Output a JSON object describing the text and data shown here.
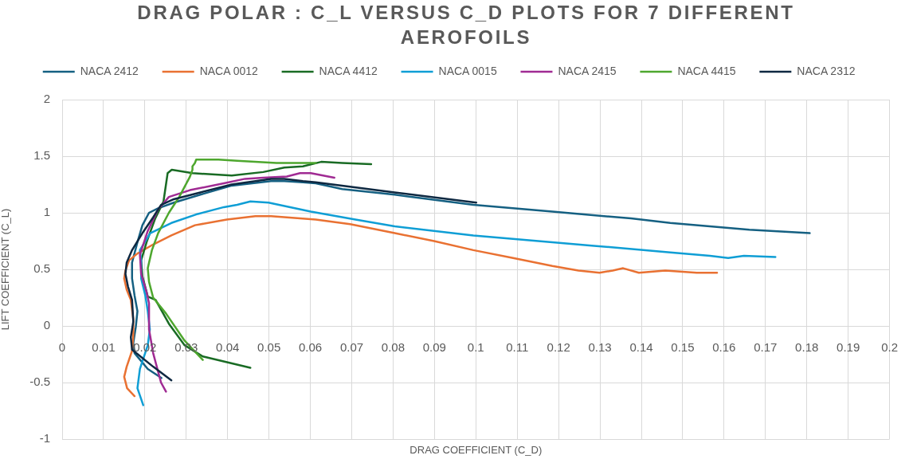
{
  "chart_data": {
    "type": "line",
    "title": "DRAG POLAR : C_L VERSUS C_D PLOTS FOR 7 DIFFERENT AEROFOILS",
    "xlabel": "DRAG COEFFICIENT (C_D)",
    "ylabel": "LIFT COEFFICIENT (C_L)",
    "xlim": [
      0,
      0.2
    ],
    "xticks": [
      0,
      0.01,
      0.02,
      0.03,
      0.04,
      0.05,
      0.06,
      0.07,
      0.08,
      0.09,
      0.1,
      0.11,
      0.12,
      0.13,
      0.14,
      0.15,
      0.16,
      0.17,
      0.18,
      0.19,
      0.2
    ],
    "ylim": [
      -1,
      2
    ],
    "yticks": [
      -1,
      -0.5,
      0,
      0.5,
      1,
      1.5,
      2
    ],
    "grid": true,
    "legend": "top",
    "marker": "none",
    "series": [
      {
        "name": "NACA 2412",
        "color": "#156082",
        "x": [
          0.024,
          0.0207,
          0.0175,
          0.0172,
          0.0178,
          0.0182,
          0.0175,
          0.0169,
          0.0169,
          0.0182,
          0.0194,
          0.021,
          0.0232,
          0.027,
          0.0334,
          0.041,
          0.0505,
          0.0537,
          0.0582,
          0.0613,
          0.0677,
          0.0804,
          0.0994,
          0.1185,
          0.1375,
          0.147,
          0.1661,
          0.1807
        ],
        "values": [
          -0.46,
          -0.38,
          -0.24,
          -0.15,
          -0.01,
          0.13,
          0.27,
          0.42,
          0.56,
          0.74,
          0.89,
          1.0,
          1.04,
          1.09,
          1.16,
          1.24,
          1.28,
          1.28,
          1.27,
          1.26,
          1.21,
          1.16,
          1.07,
          1.01,
          0.95,
          0.91,
          0.85,
          0.82
        ]
      },
      {
        "name": "NACA 0012",
        "color": "#e97132",
        "x": [
          0.0175,
          0.0157,
          0.015,
          0.0156,
          0.0169,
          0.0172,
          0.0172,
          0.0166,
          0.0156,
          0.015,
          0.0153,
          0.0162,
          0.0182,
          0.022,
          0.0264,
          0.0321,
          0.0398,
          0.0467,
          0.0505,
          0.0613,
          0.0696,
          0.0804,
          0.0899,
          0.0994,
          0.109,
          0.1185,
          0.1248,
          0.1299,
          0.1331,
          0.1356,
          0.1394,
          0.1458,
          0.1534,
          0.1583
        ],
        "values": [
          -0.62,
          -0.55,
          -0.45,
          -0.36,
          -0.22,
          -0.08,
          0.06,
          0.23,
          0.32,
          0.42,
          0.49,
          0.58,
          0.64,
          0.72,
          0.8,
          0.89,
          0.94,
          0.97,
          0.97,
          0.94,
          0.9,
          0.82,
          0.75,
          0.67,
          0.6,
          0.53,
          0.49,
          0.47,
          0.49,
          0.51,
          0.47,
          0.49,
          0.47,
          0.47
        ]
      },
      {
        "name": "NACA 4412",
        "color": "#196b24",
        "x": [
          0.0455,
          0.034,
          0.0296,
          0.0258,
          0.0226,
          0.0207,
          0.0194,
          0.0191,
          0.0205,
          0.0225,
          0.0245,
          0.0251,
          0.0255,
          0.0265,
          0.0315,
          0.041,
          0.0486,
          0.0537,
          0.0582,
          0.0626,
          0.0677,
          0.0747
        ],
        "values": [
          -0.37,
          -0.27,
          -0.17,
          0.02,
          0.23,
          0.26,
          0.44,
          0.58,
          0.75,
          0.95,
          1.1,
          1.25,
          1.35,
          1.38,
          1.35,
          1.33,
          1.36,
          1.4,
          1.41,
          1.45,
          1.44,
          1.43
        ]
      },
      {
        "name": "NACA 0015",
        "color": "#0f9ed5",
        "x": [
          0.0196,
          0.0182,
          0.0188,
          0.0207,
          0.0212,
          0.0207,
          0.0201,
          0.0191,
          0.0191,
          0.0188,
          0.0213,
          0.0264,
          0.0328,
          0.0391,
          0.0423,
          0.0455,
          0.0499,
          0.0601,
          0.0709,
          0.0804,
          0.0994,
          0.1185,
          0.128,
          0.147,
          0.1566,
          0.161,
          0.1648,
          0.1724
        ],
        "values": [
          -0.7,
          -0.55,
          -0.38,
          -0.17,
          -0.03,
          0.13,
          0.27,
          0.42,
          0.58,
          0.67,
          0.82,
          0.91,
          0.99,
          1.05,
          1.07,
          1.1,
          1.09,
          1.01,
          0.94,
          0.88,
          0.8,
          0.74,
          0.71,
          0.65,
          0.62,
          0.6,
          0.62,
          0.61
        ]
      },
      {
        "name": "NACA 2415",
        "color": "#a02b93",
        "x": [
          0.0251,
          0.0239,
          0.022,
          0.021,
          0.021,
          0.0204,
          0.0191,
          0.0188,
          0.0207,
          0.0232,
          0.0258,
          0.0309,
          0.0391,
          0.0442,
          0.0486,
          0.0543,
          0.0575,
          0.0601,
          0.0658
        ],
        "values": [
          -0.58,
          -0.5,
          -0.24,
          -0.03,
          0.2,
          0.3,
          0.46,
          0.63,
          0.84,
          1.03,
          1.14,
          1.2,
          1.26,
          1.3,
          1.31,
          1.32,
          1.35,
          1.35,
          1.31
        ]
      },
      {
        "name": "NACA 4415",
        "color": "#4ea72e",
        "x": [
          0.034,
          0.0296,
          0.0251,
          0.022,
          0.021,
          0.0207,
          0.0217,
          0.0232,
          0.0258,
          0.0283,
          0.0309,
          0.0315,
          0.0315,
          0.0321,
          0.0324,
          0.0378,
          0.0423,
          0.0518,
          0.0613
        ],
        "values": [
          -0.3,
          -0.13,
          0.11,
          0.25,
          0.39,
          0.51,
          0.67,
          0.82,
          1.0,
          1.14,
          1.32,
          1.38,
          1.41,
          1.44,
          1.47,
          1.47,
          1.46,
          1.44,
          1.44
        ]
      },
      {
        "name": "NACA 2312",
        "color": "#0e2841",
        "x": [
          0.0264,
          0.022,
          0.0169,
          0.0166,
          0.0172,
          0.0169,
          0.0159,
          0.0153,
          0.0156,
          0.0169,
          0.0194,
          0.022,
          0.0239,
          0.027,
          0.0334,
          0.041,
          0.0505,
          0.0537,
          0.0582,
          0.0613,
          0.0804,
          0.1001
        ],
        "values": [
          -0.48,
          -0.36,
          -0.21,
          -0.1,
          0.04,
          0.23,
          0.35,
          0.46,
          0.56,
          0.67,
          0.82,
          0.96,
          1.07,
          1.12,
          1.18,
          1.25,
          1.3,
          1.3,
          1.28,
          1.27,
          1.18,
          1.09
        ]
      }
    ]
  }
}
